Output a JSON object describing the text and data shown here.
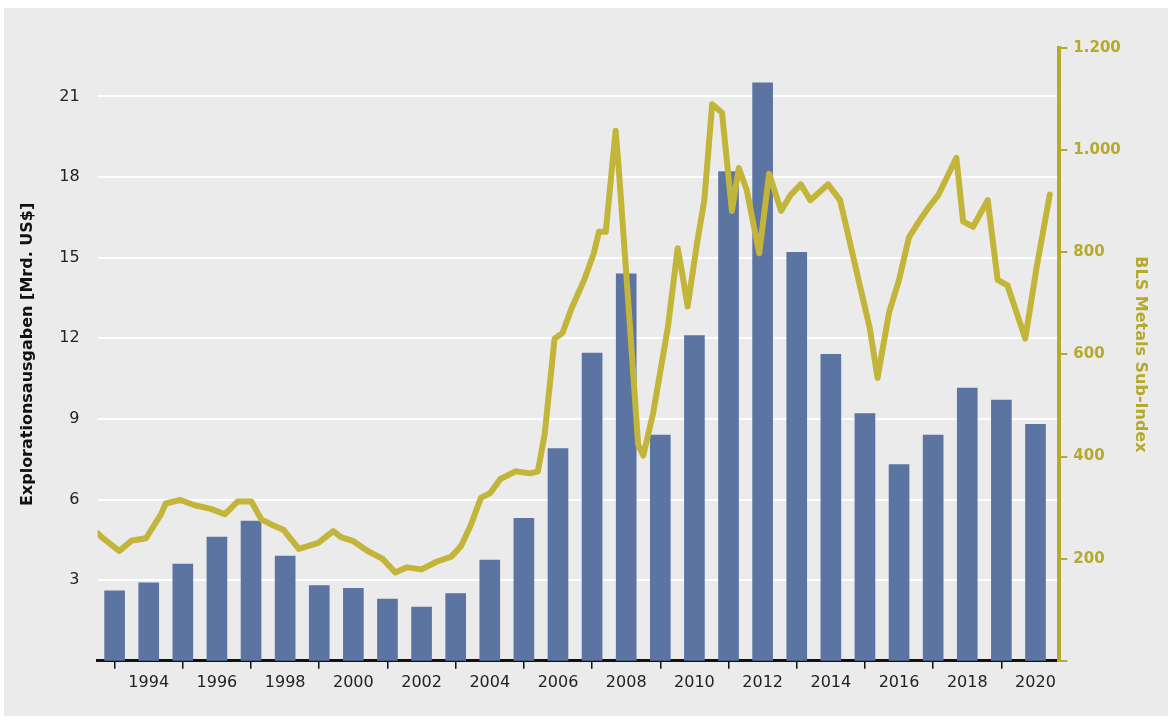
{
  "chart_data": {
    "type": "bar",
    "ylabel": "Explorationsausgaben [Mrd. US$]",
    "y2label": "BLS Metals Sub-Index",
    "xlim": [
      1992.5,
      2020.7
    ],
    "xticks": [
      1994,
      1996,
      1998,
      2000,
      2002,
      2004,
      2006,
      2008,
      2010,
      2012,
      2014,
      2016,
      2018,
      2020
    ],
    "ylim": [
      0,
      22.8
    ],
    "yticks": [
      3,
      6,
      9,
      12,
      15,
      18,
      21
    ],
    "y2lim": [
      0,
      1200
    ],
    "y2ticks": [
      {
        "value": 0,
        "label": null
      },
      200,
      400,
      600,
      800,
      {
        "value": 1000,
        "label": "1.000"
      },
      {
        "value": 1200,
        "label": "1.200"
      }
    ],
    "grid": "y",
    "series": [
      {
        "color": "#5b74a1",
        "x": [
          1993,
          1994,
          1995,
          1996,
          1997,
          1998,
          1999,
          2000,
          2001,
          2002,
          2003,
          2004,
          2005,
          2006,
          2007,
          2008,
          2009,
          2010,
          2011,
          2012,
          2013,
          2014,
          2015,
          2016,
          2017,
          2018,
          2019,
          2020
        ],
        "values": [
          2.6,
          2.9,
          3.6,
          4.6,
          5.2,
          3.9,
          2.8,
          2.7,
          2.3,
          2.0,
          2.5,
          3.75,
          5.3,
          7.9,
          11.45,
          14.4,
          8.4,
          12.1,
          18.2,
          21.5,
          15.2,
          11.4,
          9.2,
          7.3,
          8.4,
          10.15,
          9.7,
          8.8
        ]
      },
      {
        "type": "line",
        "axis": "y2",
        "color": "#c2b53a",
        "x": [
          1992.5,
          1992.62,
          1993.14,
          1993.49,
          1993.92,
          1994.36,
          1994.5,
          1994.93,
          1995.37,
          1995.8,
          1996.23,
          1996.61,
          1997.01,
          1997.3,
          1997.59,
          1997.96,
          1998.4,
          1998.97,
          1999.41,
          1999.64,
          1999.98,
          2000.42,
          2000.85,
          2001.23,
          2001.57,
          2002.0,
          2002.44,
          2002.87,
          2003.16,
          2003.45,
          2003.74,
          2004.02,
          2004.31,
          2004.75,
          2005.18,
          2005.41,
          2005.61,
          2005.9,
          2006.13,
          2006.42,
          2006.77,
          2007.05,
          2007.2,
          2007.4,
          2007.69,
          2007.78,
          2008.07,
          2008.35,
          2008.5,
          2008.79,
          2009.22,
          2009.51,
          2009.65,
          2009.8,
          2010.08,
          2010.29,
          2010.52,
          2010.81,
          2011.1,
          2011.3,
          2011.53,
          2011.9,
          2012.19,
          2012.54,
          2012.83,
          2013.12,
          2013.4,
          2013.92,
          2014.27,
          2014.56,
          2014.85,
          2015.14,
          2015.37,
          2015.71,
          2016.0,
          2016.29,
          2016.58,
          2016.87,
          2017.16,
          2017.68,
          2017.88,
          2018.17,
          2018.6,
          2018.89,
          2019.18,
          2019.7,
          2020.04,
          2020.42
        ],
        "values": [
          250,
          242,
          215,
          235,
          240,
          287,
          308,
          315,
          304,
          298,
          287,
          312,
          312,
          277,
          267,
          256,
          219,
          231,
          254,
          242,
          235,
          215,
          200,
          173,
          183,
          179,
          194,
          204,
          225,
          267,
          319,
          329,
          356,
          371,
          367,
          371,
          444,
          631,
          642,
          694,
          746,
          798,
          840,
          840,
          1038,
          965,
          694,
          423,
          402,
          485,
          652,
          808,
          756,
          694,
          819,
          902,
          1090,
          1073,
          881,
          965,
          923,
          798,
          954,
          881,
          913,
          933,
          902,
          933,
          902,
          819,
          735,
          652,
          554,
          683,
          746,
          829,
          860,
          888,
          913,
          985,
          860,
          850,
          902,
          746,
          735,
          631,
          773,
          913
        ]
      }
    ]
  }
}
